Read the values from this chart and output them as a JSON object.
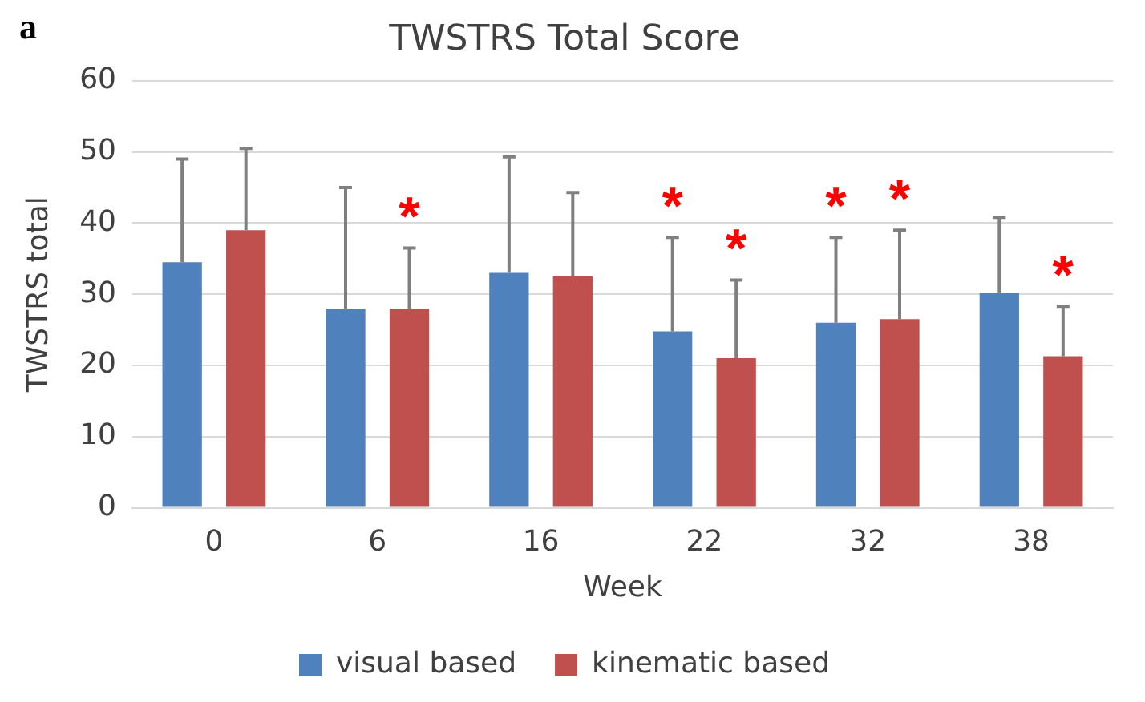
{
  "chart_data": {
    "type": "bar",
    "title": "TWSTRS Total Score",
    "xlabel": "Week",
    "ylabel": "TWSTRS total",
    "categories": [
      "0",
      "6",
      "16",
      "22",
      "32",
      "38"
    ],
    "series": [
      {
        "name": "visual based",
        "color": "#4f81bd",
        "values": [
          34.5,
          28,
          33,
          24.8,
          26,
          30.2
        ],
        "value_labels": [
          null,
          null,
          null,
          "*",
          "*",
          null
        ],
        "errors": [
          [
            34.5,
            49
          ],
          [
            28,
            45
          ],
          [
            33,
            49.3
          ],
          [
            24.8,
            38
          ],
          [
            26,
            38
          ],
          [
            30.2,
            40.8
          ]
        ]
      },
      {
        "name": "kinematic based",
        "color": "#c0504d",
        "values": [
          39,
          28,
          32.5,
          21,
          26.5,
          21.3
        ],
        "value_labels": [
          null,
          "*",
          null,
          "*",
          "*",
          "*"
        ],
        "errors": [
          [
            39,
            50.5
          ],
          [
            28,
            36.5
          ],
          [
            32.5,
            44.3
          ],
          [
            21,
            32
          ],
          [
            26.5,
            39
          ],
          [
            21.3,
            28.3
          ]
        ]
      }
    ],
    "ylim": [
      0,
      60
    ],
    "yticks": [
      0,
      10,
      20,
      30,
      40,
      50,
      60
    ],
    "grid": "y",
    "legend": "bottom",
    "annotations": [
      "a"
    ]
  }
}
